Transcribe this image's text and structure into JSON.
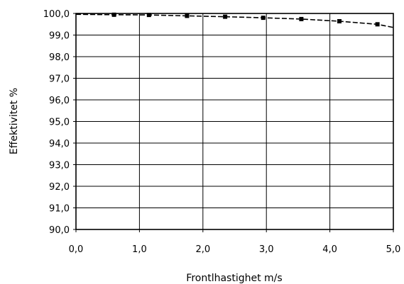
{
  "chart_data": {
    "type": "line",
    "title": "",
    "xlabel": "Frontlhastighet m/s",
    "ylabel": "Effektivitet %",
    "xlim": [
      0,
      5
    ],
    "ylim": [
      90,
      100
    ],
    "grid": true,
    "legend": "none",
    "x_ticks": [
      "0,0",
      "1,0",
      "2,0",
      "3,0",
      "4,0",
      "5,0"
    ],
    "y_ticks": [
      "90,0",
      "91,0",
      "92,0",
      "93,0",
      "94,0",
      "95,0",
      "96,0",
      "97,0",
      "98,0",
      "99,0",
      "100,0"
    ],
    "series": [
      {
        "x": [
          0.0,
          0.6,
          1.15,
          1.75,
          2.35,
          2.95,
          3.55,
          4.15,
          4.75,
          5.0
        ],
        "y": [
          99.96,
          99.94,
          99.93,
          99.89,
          99.85,
          99.8,
          99.74,
          99.64,
          99.5,
          99.35
        ],
        "markers": [
          false,
          true,
          true,
          true,
          true,
          true,
          true,
          true,
          true,
          false
        ],
        "color": "#000000"
      }
    ]
  }
}
